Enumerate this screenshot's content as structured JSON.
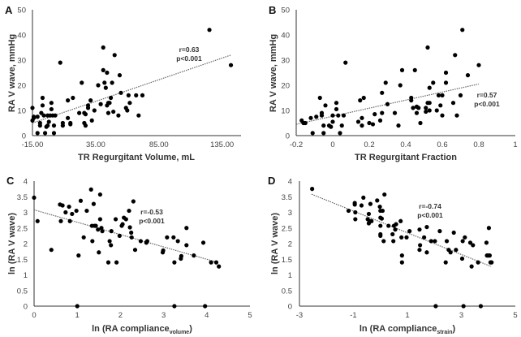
{
  "chart_data": [
    {
      "type": "scatter",
      "panel_label": "A",
      "xlabel": "TR Regurgitant Volume, mL",
      "ylabel": "RA V wave, mmHg",
      "xlim": [
        -15,
        150
      ],
      "ylim": [
        0,
        50
      ],
      "xticks": [
        "-15.00",
        "35.00",
        "85.00",
        "135.00"
      ],
      "xtick_values": [
        -15,
        35,
        85,
        135
      ],
      "yticks": [
        "0",
        "10",
        "20",
        "30",
        "40",
        "50"
      ],
      "ytick_values": [
        0,
        10,
        20,
        30,
        40,
        50
      ],
      "grid": false,
      "annotation": [
        "r=0.63",
        "p<0.001"
      ],
      "trendline": [
        [
          -15,
          5
        ],
        [
          142,
          32
        ]
      ],
      "points": [
        [
          -15,
          11
        ],
        [
          -15,
          6
        ],
        [
          -14,
          7
        ],
        [
          -14,
          7.5
        ],
        [
          -11,
          1
        ],
        [
          -11,
          7.5
        ],
        [
          -9,
          4
        ],
        [
          -9,
          5
        ],
        [
          -8,
          9
        ],
        [
          -7,
          12
        ],
        [
          -7,
          15
        ],
        [
          -6,
          8
        ],
        [
          -5,
          1
        ],
        [
          -4,
          3.5
        ],
        [
          -3,
          4
        ],
        [
          -3,
          8
        ],
        [
          -2,
          5.5
        ],
        [
          -1,
          8
        ],
        [
          0,
          13
        ],
        [
          0,
          10.5
        ],
        [
          1,
          8
        ],
        [
          2,
          1
        ],
        [
          2,
          4
        ],
        [
          3,
          8
        ],
        [
          7,
          29
        ],
        [
          9,
          5
        ],
        [
          9,
          4
        ],
        [
          13,
          7
        ],
        [
          13,
          14
        ],
        [
          15,
          5
        ],
        [
          15,
          4.5
        ],
        [
          17,
          15
        ],
        [
          22,
          9
        ],
        [
          24,
          21
        ],
        [
          26,
          5
        ],
        [
          26,
          9
        ],
        [
          27,
          4
        ],
        [
          27,
          8.5
        ],
        [
          29,
          11
        ],
        [
          29,
          12
        ],
        [
          31,
          14
        ],
        [
          32,
          6
        ],
        [
          34,
          10
        ],
        [
          37,
          20
        ],
        [
          39,
          12.5
        ],
        [
          41,
          35
        ],
        [
          41,
          26
        ],
        [
          42,
          21
        ],
        [
          43,
          19
        ],
        [
          44,
          25
        ],
        [
          44,
          12
        ],
        [
          45,
          9
        ],
        [
          45,
          13
        ],
        [
          46,
          13
        ],
        [
          47,
          15
        ],
        [
          48,
          21
        ],
        [
          49,
          9.5
        ],
        [
          50,
          32
        ],
        [
          53,
          8
        ],
        [
          54,
          24
        ],
        [
          55,
          17
        ],
        [
          59,
          11
        ],
        [
          60,
          10
        ],
        [
          61,
          16
        ],
        [
          62,
          13
        ],
        [
          67,
          16
        ],
        [
          69,
          8
        ],
        [
          72,
          16
        ],
        [
          125,
          42
        ],
        [
          142,
          28
        ]
      ]
    },
    {
      "type": "scatter",
      "panel_label": "B",
      "xlabel": "TR Regurgitant Fraction",
      "ylabel": "RA V wave, mmHg",
      "xlim": [
        -0.2,
        1
      ],
      "ylim": [
        0,
        50
      ],
      "xticks": [
        "-0.2",
        "0",
        "0.2",
        "0.4",
        "0.6",
        "0.8",
        "1"
      ],
      "xtick_values": [
        -0.2,
        0,
        0.2,
        0.4,
        0.6,
        0.8,
        1
      ],
      "yticks": [
        "0",
        "10",
        "20",
        "30",
        "40",
        "50"
      ],
      "ytick_values": [
        0,
        10,
        20,
        30,
        40,
        50
      ],
      "grid": false,
      "annotation": [
        "r=0.57",
        "p<0.001"
      ],
      "trendline": [
        [
          -0.2,
          4.5
        ],
        [
          0.8,
          20.5
        ]
      ],
      "points": [
        [
          -0.17,
          6
        ],
        [
          -0.16,
          5
        ],
        [
          -0.15,
          5
        ],
        [
          -0.12,
          7
        ],
        [
          -0.11,
          1
        ],
        [
          -0.09,
          7.5
        ],
        [
          -0.07,
          15
        ],
        [
          -0.06,
          8
        ],
        [
          -0.06,
          9
        ],
        [
          -0.05,
          4
        ],
        [
          -0.05,
          1
        ],
        [
          -0.04,
          12
        ],
        [
          -0.02,
          4
        ],
        [
          -0.01,
          3.5
        ],
        [
          0,
          8
        ],
        [
          0,
          5.5
        ],
        [
          0.02,
          10.5
        ],
        [
          0.02,
          13
        ],
        [
          0.03,
          8
        ],
        [
          0.04,
          1
        ],
        [
          0.05,
          4
        ],
        [
          0.06,
          8
        ],
        [
          0.07,
          29
        ],
        [
          0.14,
          5.5
        ],
        [
          0.15,
          14
        ],
        [
          0.16,
          7
        ],
        [
          0.16,
          4
        ],
        [
          0.17,
          15
        ],
        [
          0.2,
          5
        ],
        [
          0.22,
          4.5
        ],
        [
          0.23,
          8.5
        ],
        [
          0.26,
          6
        ],
        [
          0.27,
          17
        ],
        [
          0.27,
          9
        ],
        [
          0.29,
          21
        ],
        [
          0.3,
          12.5
        ],
        [
          0.34,
          9
        ],
        [
          0.36,
          4
        ],
        [
          0.37,
          20
        ],
        [
          0.38,
          26
        ],
        [
          0.43,
          14
        ],
        [
          0.43,
          15
        ],
        [
          0.44,
          11
        ],
        [
          0.45,
          26
        ],
        [
          0.46,
          11.5
        ],
        [
          0.46,
          9
        ],
        [
          0.47,
          11
        ],
        [
          0.48,
          5
        ],
        [
          0.51,
          11
        ],
        [
          0.51,
          9.5
        ],
        [
          0.52,
          35
        ],
        [
          0.52,
          13
        ],
        [
          0.53,
          19
        ],
        [
          0.53,
          10
        ],
        [
          0.53,
          13
        ],
        [
          0.55,
          21
        ],
        [
          0.57,
          10
        ],
        [
          0.58,
          16
        ],
        [
          0.59,
          12
        ],
        [
          0.6,
          16
        ],
        [
          0.6,
          8
        ],
        [
          0.62,
          21
        ],
        [
          0.62,
          25
        ],
        [
          0.66,
          13
        ],
        [
          0.67,
          32
        ],
        [
          0.68,
          8
        ],
        [
          0.7,
          16
        ],
        [
          0.71,
          42
        ],
        [
          0.74,
          24
        ],
        [
          0.8,
          28
        ]
      ]
    },
    {
      "type": "scatter",
      "panel_label": "C",
      "xlabel": "ln (RA compliance",
      "xlabel_sub": "volume",
      "xlabel_end": ")",
      "ylabel": "ln (RA V wave)",
      "xlim": [
        0,
        5
      ],
      "ylim": [
        0,
        4
      ],
      "xticks": [
        "0",
        "1",
        "2",
        "3",
        "4",
        "5"
      ],
      "xtick_values": [
        0,
        1,
        2,
        3,
        4,
        5
      ],
      "yticks": [
        "0",
        "0.5",
        "1",
        "1.5",
        "2",
        "2.5",
        "3",
        "3.5",
        "4"
      ],
      "ytick_values": [
        0,
        0.5,
        1,
        1.5,
        2,
        2.5,
        3,
        3.5,
        4
      ],
      "grid": false,
      "annotation": [
        "r=-0.53",
        "p<0.001"
      ],
      "trendline": [
        [
          0,
          3.08
        ],
        [
          4.25,
          1.4
        ]
      ],
      "points": [
        [
          0,
          3.47
        ],
        [
          0.08,
          2.72
        ],
        [
          0.4,
          1.8
        ],
        [
          0.6,
          3.25
        ],
        [
          0.62,
          2.72
        ],
        [
          0.66,
          3.22
        ],
        [
          0.73,
          3.0
        ],
        [
          0.81,
          3.18
        ],
        [
          0.83,
          2.72
        ],
        [
          0.88,
          2.95
        ],
        [
          0.98,
          3.05
        ],
        [
          1.0,
          0
        ],
        [
          1.03,
          1.62
        ],
        [
          1.08,
          3.37
        ],
        [
          1.15,
          2.2
        ],
        [
          1.22,
          3.05
        ],
        [
          1.32,
          3.73
        ],
        [
          1.34,
          2.57
        ],
        [
          1.35,
          2.08
        ],
        [
          1.38,
          3.27
        ],
        [
          1.4,
          2.57
        ],
        [
          1.43,
          2.57
        ],
        [
          1.48,
          2.45
        ],
        [
          1.5,
          1.72
        ],
        [
          1.53,
          3.57
        ],
        [
          1.53,
          2.78
        ],
        [
          1.56,
          2.5
        ],
        [
          1.58,
          2.4
        ],
        [
          1.72,
          1.4
        ],
        [
          1.75,
          2.08
        ],
        [
          1.78,
          1.95
        ],
        [
          1.79,
          2.4
        ],
        [
          1.89,
          2.78
        ],
        [
          1.91,
          1.4
        ],
        [
          1.98,
          2.25
        ],
        [
          2.03,
          2.57
        ],
        [
          2.05,
          2.62
        ],
        [
          2.08,
          2.83
        ],
        [
          2.13,
          2.78
        ],
        [
          2.2,
          3.05
        ],
        [
          2.22,
          2.52
        ],
        [
          2.25,
          2.35
        ],
        [
          2.26,
          2.2
        ],
        [
          2.3,
          3.35
        ],
        [
          2.34,
          1.8
        ],
        [
          2.47,
          2.08
        ],
        [
          2.6,
          2.03
        ],
        [
          2.62,
          2.08
        ],
        [
          2.98,
          1.72
        ],
        [
          2.99,
          1.78
        ],
        [
          3.08,
          2.2
        ],
        [
          3.23,
          2.2
        ],
        [
          3.25,
          1.4
        ],
        [
          3.25,
          0
        ],
        [
          3.33,
          2.08
        ],
        [
          3.4,
          1.52
        ],
        [
          3.41,
          1.6
        ],
        [
          3.53,
          2.5
        ],
        [
          3.53,
          1.95
        ],
        [
          3.7,
          1.62
        ],
        [
          3.92,
          2.03
        ],
        [
          3.96,
          0
        ],
        [
          4.1,
          1.4
        ],
        [
          4.22,
          1.4
        ],
        [
          4.28,
          1.27
        ]
      ]
    },
    {
      "type": "scatter",
      "panel_label": "D",
      "xlabel": "ln (RA compliance",
      "xlabel_sub": "strain",
      "xlabel_end": ")",
      "ylabel": "ln (RA V wave)",
      "xlim": [
        -3,
        5
      ],
      "ylim": [
        0,
        4
      ],
      "xticks": [
        "-3",
        "-1",
        "1",
        "3",
        "5"
      ],
      "xtick_values": [
        -3,
        -1,
        1,
        3,
        5
      ],
      "yticks": [
        "0",
        "0.5",
        "1",
        "1.5",
        "2",
        "2.5",
        "3",
        "3.5",
        "4"
      ],
      "ytick_values": [
        0,
        0.5,
        1,
        1.5,
        2,
        2.5,
        3,
        3.5,
        4
      ],
      "grid": false,
      "annotation": [
        "r=-0.74",
        "p<0.001"
      ],
      "trendline": [
        [
          -2.55,
          3.58
        ],
        [
          4.1,
          1.27
        ]
      ],
      "points": [
        [
          -2.53,
          3.75
        ],
        [
          -1.18,
          3.05
        ],
        [
          -0.95,
          3.3
        ],
        [
          -0.95,
          3.25
        ],
        [
          -0.93,
          3.0
        ],
        [
          -0.93,
          2.78
        ],
        [
          -0.7,
          3.22
        ],
        [
          -0.63,
          3.47
        ],
        [
          -0.43,
          2.95
        ],
        [
          -0.47,
          2.78
        ],
        [
          -0.43,
          2.65
        ],
        [
          -0.4,
          2.72
        ],
        [
          -0.37,
          3.27
        ],
        [
          -0.33,
          2.72
        ],
        [
          -0.12,
          3.38
        ],
        [
          -0.02,
          3.18
        ],
        [
          0,
          3.05
        ],
        [
          0,
          2.83
        ],
        [
          0,
          2.57
        ],
        [
          0,
          2.3
        ],
        [
          0,
          2.25
        ],
        [
          0.05,
          2.8
        ],
        [
          0.08,
          3.05
        ],
        [
          0.12,
          2.08
        ],
        [
          0.15,
          3.57
        ],
        [
          0.3,
          2.57
        ],
        [
          0.45,
          2.3
        ],
        [
          0.48,
          2.08
        ],
        [
          0.5,
          2.57
        ],
        [
          0.55,
          2.45
        ],
        [
          0.58,
          2.62
        ],
        [
          0.75,
          2.72
        ],
        [
          0.78,
          2.2
        ],
        [
          0.8,
          1.62
        ],
        [
          0.8,
          1.4
        ],
        [
          0.97,
          2.2
        ],
        [
          1.08,
          2.4
        ],
        [
          1.45,
          2.45
        ],
        [
          1.45,
          1.8
        ],
        [
          1.47,
          1.95
        ],
        [
          1.62,
          2.2
        ],
        [
          1.72,
          2.53
        ],
        [
          1.72,
          1.72
        ],
        [
          1.88,
          2.08
        ],
        [
          2.02,
          2.08
        ],
        [
          2.05,
          0
        ],
        [
          2.2,
          2.4
        ],
        [
          2.42,
          1.4
        ],
        [
          2.46,
          2.08
        ],
        [
          2.53,
          1.8
        ],
        [
          2.6,
          1.72
        ],
        [
          2.72,
          2.35
        ],
        [
          2.8,
          1.8
        ],
        [
          3.03,
          1.52
        ],
        [
          3.05,
          2.08
        ],
        [
          3.08,
          0
        ],
        [
          3.13,
          2.2
        ],
        [
          3.33,
          2.03
        ],
        [
          3.38,
          1.27
        ],
        [
          3.43,
          1.95
        ],
        [
          3.62,
          1.4
        ],
        [
          3.72,
          0
        ],
        [
          3.93,
          2.03
        ],
        [
          3.95,
          1.62
        ],
        [
          4.0,
          1.62
        ],
        [
          4.02,
          2.5
        ],
        [
          4.05,
          1.62
        ],
        [
          4.08,
          1.4
        ],
        [
          4.12,
          1.4
        ]
      ]
    }
  ]
}
